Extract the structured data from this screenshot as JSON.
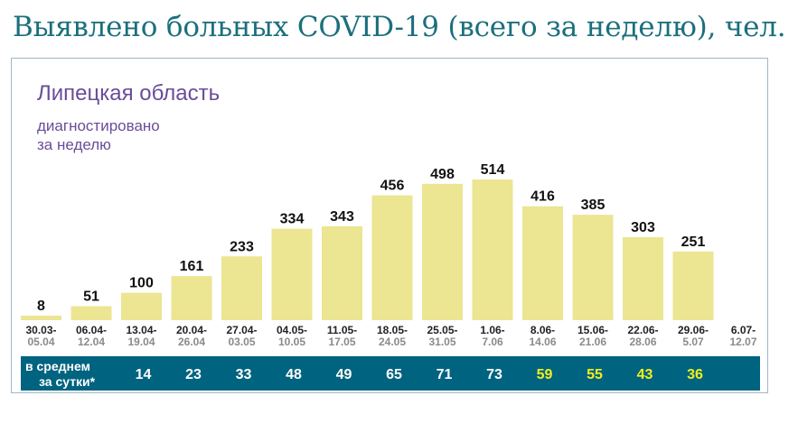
{
  "page": {
    "title": "Выявлено больных COVID-19 (всего за неделю), чел.",
    "colors": {
      "title": "#1b6f7d",
      "bar": "#ece592",
      "band": "#00637f",
      "highlight": "#f2ee1c",
      "subtitle": "#6a4c99"
    }
  },
  "chart_data": {
    "type": "bar",
    "title": "Липецкая область",
    "subtitle_lines": [
      "диагностировано",
      "за неделю"
    ],
    "categories": [
      "30.03-05.04",
      "06.04-12.04",
      "13.04-19.04",
      "20.04-26.04",
      "27.04-03.05",
      "04.05-10.05",
      "11.05-17.05",
      "18.05-24.05",
      "25.05-31.05",
      "1.06-7.06",
      "8.06-14.06",
      "15.06-21.06",
      "22.06-28.06",
      "29.06-5.07",
      "6.07-12.07"
    ],
    "category_lines": [
      [
        "30.03-",
        "05.04"
      ],
      [
        "06.04-",
        "12.04"
      ],
      [
        "13.04-",
        "19.04"
      ],
      [
        "20.04-",
        "26.04"
      ],
      [
        "27.04-",
        "03.05"
      ],
      [
        "04.05-",
        "10.05"
      ],
      [
        "11.05-",
        "17.05"
      ],
      [
        "18.05-",
        "24.05"
      ],
      [
        "25.05-",
        "31.05"
      ],
      [
        "1.06-",
        "7.06"
      ],
      [
        "8.06-",
        "14.06"
      ],
      [
        "15.06-",
        "21.06"
      ],
      [
        "22.06-",
        "28.06"
      ],
      [
        "29.06-",
        "5.07"
      ],
      [
        "6.07-",
        "12.07"
      ]
    ],
    "values": [
      8,
      51,
      100,
      161,
      233,
      334,
      343,
      456,
      498,
      514,
      416,
      385,
      303,
      251,
      null
    ],
    "value_labels": [
      "8",
      "51",
      "100",
      "161",
      "233",
      "334",
      "343",
      "456",
      "498",
      "514",
      "416",
      "385",
      "303",
      "251",
      ""
    ],
    "ylim": [
      0,
      560
    ],
    "grid": false,
    "daily_average": {
      "label_lines": [
        "в среднем",
        "за сутки*"
      ],
      "values": [
        null,
        null,
        14,
        23,
        33,
        48,
        49,
        65,
        71,
        73,
        59,
        55,
        43,
        36,
        null
      ],
      "value_labels": [
        "",
        "",
        "14",
        "23",
        "33",
        "48",
        "49",
        "65",
        "71",
        "73",
        "59",
        "55",
        "43",
        "36",
        ""
      ],
      "highlighted_from_index": 10
    }
  }
}
